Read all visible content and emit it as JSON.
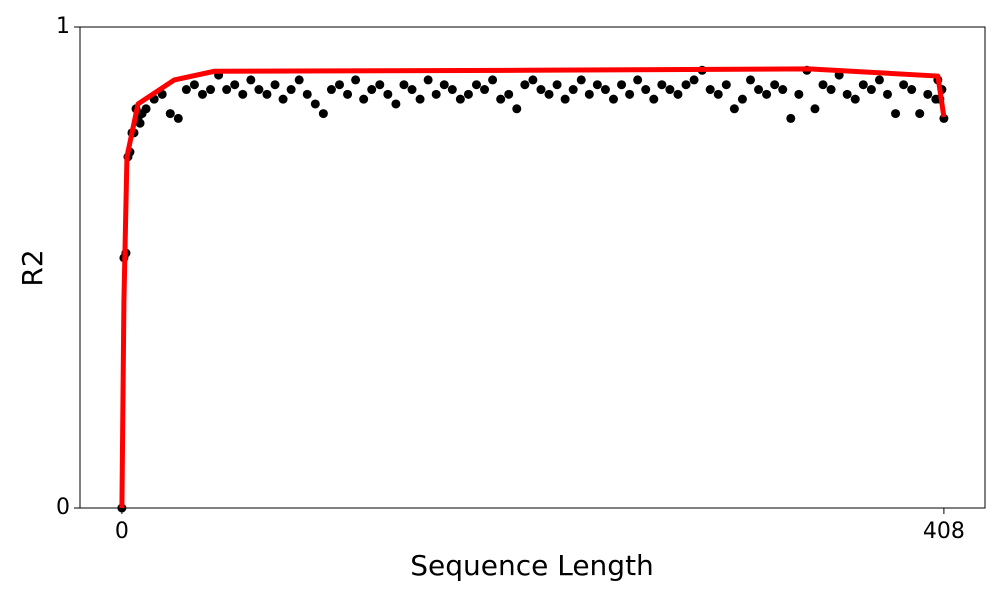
{
  "chart_data": {
    "type": "scatter",
    "x_label": "Sequence Length",
    "y_label": "R2",
    "xlim": [
      -20.8,
      428.4
    ],
    "ylim": [
      0,
      1
    ],
    "xticks": [
      0,
      408
    ],
    "yticks": [
      0,
      1
    ],
    "grid": false,
    "series": [
      {
        "kind": "scatter",
        "color": "#000000",
        "x": [
          0,
          1,
          2,
          3,
          4,
          5,
          6,
          7,
          8,
          9,
          10,
          12,
          16,
          20,
          24,
          28,
          32,
          36,
          40,
          44,
          48,
          52,
          56,
          60,
          64,
          68,
          72,
          76,
          80,
          84,
          88,
          92,
          96,
          100,
          104,
          108,
          112,
          116,
          120,
          124,
          128,
          132,
          136,
          140,
          144,
          148,
          152,
          156,
          160,
          164,
          168,
          172,
          176,
          180,
          184,
          188,
          192,
          196,
          200,
          204,
          208,
          212,
          216,
          220,
          224,
          228,
          232,
          236,
          240,
          244,
          248,
          252,
          256,
          260,
          264,
          268,
          272,
          276,
          280,
          284,
          288,
          292,
          296,
          300,
          304,
          308,
          312,
          316,
          320,
          324,
          328,
          332,
          336,
          340,
          344,
          348,
          352,
          356,
          360,
          364,
          368,
          372,
          376,
          380,
          384,
          388,
          392,
          396,
          400,
          404,
          405,
          406,
          407,
          408
        ],
        "values": [
          0,
          0.52,
          0.53,
          0.73,
          0.74,
          0.78,
          0.78,
          0.83,
          0.81,
          0.8,
          0.82,
          0.83,
          0.85,
          0.86,
          0.82,
          0.81,
          0.87,
          0.88,
          0.86,
          0.87,
          0.9,
          0.87,
          0.88,
          0.86,
          0.89,
          0.87,
          0.86,
          0.88,
          0.85,
          0.87,
          0.89,
          0.86,
          0.84,
          0.82,
          0.87,
          0.88,
          0.86,
          0.89,
          0.85,
          0.87,
          0.88,
          0.86,
          0.84,
          0.88,
          0.87,
          0.85,
          0.89,
          0.86,
          0.88,
          0.87,
          0.85,
          0.86,
          0.88,
          0.87,
          0.89,
          0.85,
          0.86,
          0.83,
          0.88,
          0.89,
          0.87,
          0.86,
          0.88,
          0.85,
          0.87,
          0.89,
          0.86,
          0.88,
          0.87,
          0.85,
          0.88,
          0.86,
          0.89,
          0.87,
          0.85,
          0.88,
          0.87,
          0.86,
          0.88,
          0.89,
          0.91,
          0.87,
          0.86,
          0.88,
          0.83,
          0.85,
          0.89,
          0.87,
          0.86,
          0.88,
          0.87,
          0.81,
          0.86,
          0.91,
          0.83,
          0.88,
          0.87,
          0.9,
          0.86,
          0.85,
          0.88,
          0.87,
          0.89,
          0.86,
          0.82,
          0.88,
          0.87,
          0.82,
          0.86,
          0.85,
          0.89,
          0.85,
          0.87,
          0.81
        ]
      },
      {
        "kind": "line",
        "color": "#ff0000",
        "x": [
          0,
          1,
          2.5,
          8,
          26,
          46,
          200,
          341,
          405,
          408
        ],
        "values": [
          0,
          0.43,
          0.73,
          0.84,
          0.89,
          0.908,
          0.91,
          0.913,
          0.898,
          0.813
        ]
      }
    ]
  }
}
